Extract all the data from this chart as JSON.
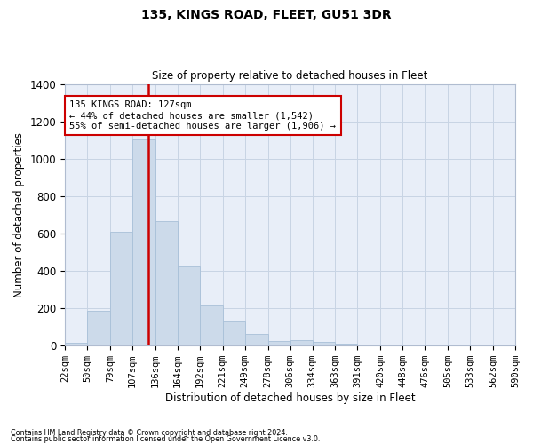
{
  "title": "135, KINGS ROAD, FLEET, GU51 3DR",
  "subtitle": "Size of property relative to detached houses in Fleet",
  "xlabel": "Distribution of detached houses by size in Fleet",
  "ylabel": "Number of detached properties",
  "footnote1": "Contains HM Land Registry data © Crown copyright and database right 2024.",
  "footnote2": "Contains public sector information licensed under the Open Government Licence v3.0.",
  "annotation_title": "135 KINGS ROAD: 127sqm",
  "annotation_line1": "← 44% of detached houses are smaller (1,542)",
  "annotation_line2": "55% of semi-detached houses are larger (1,906) →",
  "bar_color": "#ccdaea",
  "bar_edge_color": "#a8c0d8",
  "vline_color": "#cc0000",
  "vline_x": 127,
  "annotation_box_color": "#ffffff",
  "annotation_box_edge": "#cc0000",
  "grid_color": "#c8d4e4",
  "background_color": "#e8eef8",
  "bins": [
    22,
    50,
    79,
    107,
    136,
    164,
    192,
    221,
    249,
    278,
    306,
    334,
    363,
    391,
    420,
    448,
    476,
    505,
    533,
    562,
    590
  ],
  "counts": [
    15,
    185,
    610,
    1105,
    665,
    425,
    215,
    130,
    65,
    25,
    28,
    20,
    10,
    5,
    3,
    2,
    1,
    1,
    0,
    1
  ],
  "ylim": [
    0,
    1400
  ],
  "yticks": [
    0,
    200,
    400,
    600,
    800,
    1000,
    1200,
    1400
  ]
}
